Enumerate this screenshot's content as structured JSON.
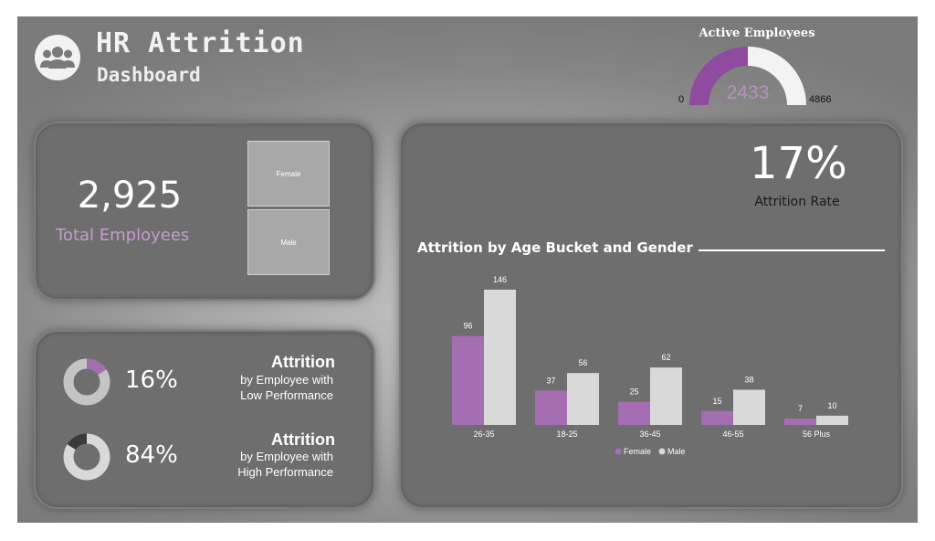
{
  "header": {
    "title": "HR Attrition",
    "subtitle": "Dashboard",
    "logo_icon": "people-group-icon"
  },
  "gauge": {
    "title": "Active Employees",
    "value": "2433",
    "min": "0",
    "max": "4866",
    "fraction": 0.5
  },
  "totals": {
    "value": "2,925",
    "label": "Total Employees"
  },
  "gender_filter": {
    "options": [
      "Female",
      "Male"
    ]
  },
  "low_perf": {
    "pct": "16%",
    "fraction": 0.16,
    "title": "Attrition",
    "sub1": "by Employee with",
    "sub2": "Low Performance"
  },
  "high_perf": {
    "pct": "84%",
    "fraction": 0.84,
    "title": "Attrition",
    "sub1": "by Employee with",
    "sub2": "High Performance"
  },
  "attrition_rate": {
    "value": "17%",
    "label": "Attrition Rate"
  },
  "colors": {
    "female": "#a56db2",
    "male": "#d9d9d9",
    "gauge_fill": "#8e4b9f",
    "gauge_track": "#f3f3f3",
    "donut_low_track": "#c4c4c4",
    "donut_high_track": "#3a3a3a"
  },
  "chart_data": {
    "type": "bar",
    "title": "Attrition by Age Bucket and Gender",
    "categories": [
      "26-35",
      "18-25",
      "36-45",
      "46-55",
      "56 Plus"
    ],
    "series": [
      {
        "name": "Female",
        "values": [
          96,
          37,
          25,
          15,
          7
        ]
      },
      {
        "name": "Male",
        "values": [
          146,
          56,
          62,
          38,
          10
        ]
      }
    ],
    "legend": "bottom",
    "grid": false
  }
}
